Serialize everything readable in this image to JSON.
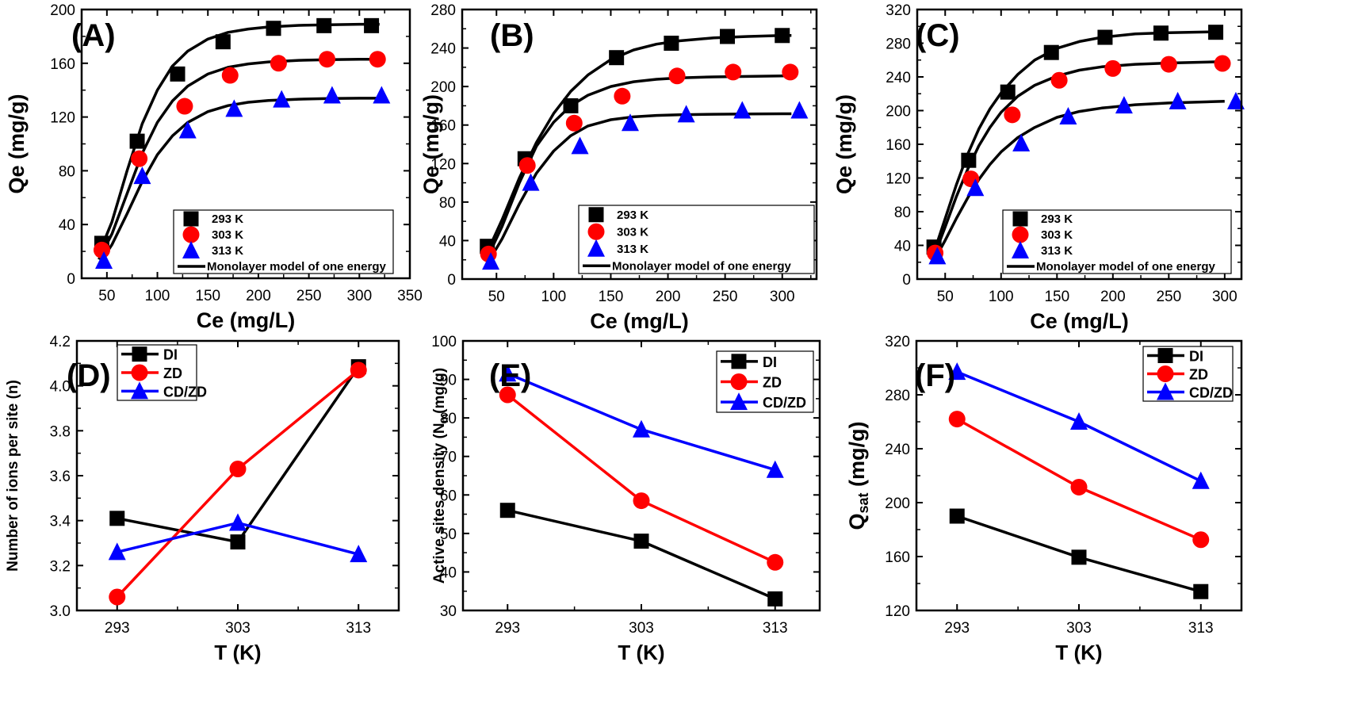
{
  "chart_data": [
    {
      "type": "scatter",
      "panel_label": "(A)",
      "xlabel": "Ce (mg/L)",
      "ylabel": "Qe (mg/g)",
      "xlim": [
        25,
        350
      ],
      "ylim": [
        0,
        200
      ],
      "xticks": [
        50,
        100,
        150,
        200,
        250,
        300,
        350
      ],
      "yticks": [
        0,
        40,
        80,
        120,
        160,
        200
      ],
      "legend_position": "bottom-right",
      "series": [
        {
          "name": "293 K",
          "marker": "square",
          "color": "#000000",
          "x": [
            45,
            80,
            120,
            165,
            215,
            265,
            312
          ],
          "y": [
            26,
            102,
            152,
            176,
            186,
            188,
            188
          ]
        },
        {
          "name": "303 K",
          "marker": "circle",
          "color": "#ff0000",
          "x": [
            45,
            82,
            127,
            172,
            220,
            268,
            318
          ],
          "y": [
            21,
            89,
            128,
            151,
            160,
            163,
            163
          ]
        },
        {
          "name": "313 K",
          "marker": "triangle",
          "color": "#0000ff",
          "x": [
            47,
            85,
            130,
            176,
            223,
            273,
            322
          ],
          "y": [
            13,
            76,
            110,
            126,
            133,
            136,
            136
          ]
        }
      ],
      "fits": [
        {
          "name": "Monolayer model of one energy",
          "color": "#000000",
          "x": [
            42,
            55,
            70,
            85,
            100,
            115,
            130,
            150,
            170,
            190,
            210,
            240,
            270,
            300,
            320
          ],
          "y": [
            18,
            42,
            80,
            115,
            140,
            158,
            169,
            178,
            183,
            185.5,
            187,
            188.2,
            188.7,
            189,
            189
          ]
        },
        {
          "name": "",
          "color": "#000000",
          "x": [
            42,
            55,
            70,
            85,
            100,
            115,
            130,
            150,
            170,
            190,
            210,
            240,
            270,
            300,
            320
          ],
          "y": [
            14,
            33,
            63,
            93,
            116,
            132,
            143,
            152,
            157,
            159.5,
            161,
            162.2,
            162.7,
            163,
            163
          ]
        },
        {
          "name": "",
          "color": "#000000",
          "x": [
            42,
            55,
            70,
            85,
            100,
            115,
            130,
            150,
            170,
            190,
            210,
            240,
            270,
            300,
            320
          ],
          "y": [
            10,
            25,
            48,
            72,
            92,
            106,
            116,
            124,
            128.5,
            131,
            132.3,
            133.3,
            133.8,
            134,
            134
          ]
        }
      ],
      "legend": [
        "293 K",
        "303 K",
        "313 K",
        "Monolayer model of one energy"
      ]
    },
    {
      "type": "scatter",
      "panel_label": "(B)",
      "xlabel": "Ce (mg/L)",
      "ylabel": "Qe (mg/g)",
      "xlim": [
        20,
        330
      ],
      "ylim": [
        0,
        280
      ],
      "xticks": [
        50,
        100,
        150,
        200,
        250,
        300
      ],
      "yticks": [
        0,
        40,
        80,
        120,
        160,
        200,
        240,
        280
      ],
      "legend_position": "bottom-right",
      "series": [
        {
          "name": "293 K",
          "marker": "square",
          "color": "#000000",
          "x": [
            42,
            75,
            115,
            155,
            203,
            252,
            300
          ],
          "y": [
            34,
            125,
            180,
            230,
            245,
            252,
            253
          ]
        },
        {
          "name": "303 K",
          "marker": "circle",
          "color": "#ff0000",
          "x": [
            43,
            77,
            118,
            160,
            208,
            257,
            307
          ],
          "y": [
            26,
            118,
            162,
            190,
            211,
            215,
            215
          ]
        },
        {
          "name": "313 K",
          "marker": "triangle",
          "color": "#0000ff",
          "x": [
            45,
            80,
            123,
            167,
            216,
            265,
            315
          ],
          "y": [
            18,
            100,
            138,
            162,
            171,
            175,
            175
          ]
        }
      ],
      "fits": [
        {
          "name": "Monolayer model of one energy",
          "color": "#000000",
          "x": [
            42,
            55,
            70,
            85,
            100,
            115,
            130,
            150,
            170,
            190,
            210,
            240,
            270,
            300,
            308
          ],
          "y": [
            28,
            62,
            105,
            142,
            172,
            195,
            212,
            228,
            238,
            244,
            247.5,
            250.5,
            252,
            253,
            253
          ]
        },
        {
          "name": "",
          "color": "#000000",
          "x": [
            42,
            55,
            70,
            85,
            100,
            115,
            130,
            150,
            170,
            190,
            210,
            240,
            270,
            300,
            308
          ],
          "y": [
            22,
            55,
            100,
            138,
            163,
            180,
            191,
            200,
            205,
            207.5,
            209,
            210,
            210.5,
            211,
            211
          ]
        },
        {
          "name": "",
          "color": "#000000",
          "x": [
            42,
            55,
            70,
            85,
            100,
            115,
            130,
            150,
            170,
            190,
            210,
            240,
            270,
            300,
            308
          ],
          "y": [
            16,
            42,
            78,
            110,
            133,
            149,
            159,
            165.5,
            168.5,
            170,
            170.7,
            171.2,
            171.5,
            171.7,
            171.7
          ]
        }
      ],
      "legend": [
        "293 K",
        "303 K",
        "313 K",
        "Monolayer model of one energy"
      ]
    },
    {
      "type": "scatter",
      "panel_label": "(C)",
      "xlabel": "Ce (mg/L)",
      "ylabel": "Qe (mg/g)",
      "xlim": [
        25,
        315
      ],
      "ylim": [
        0,
        320
      ],
      "xticks": [
        50,
        100,
        150,
        200,
        250,
        300
      ],
      "yticks": [
        0,
        40,
        80,
        120,
        160,
        200,
        240,
        280,
        320
      ],
      "legend_position": "bottom-right",
      "series": [
        {
          "name": "293 K",
          "marker": "square",
          "color": "#000000",
          "x": [
            40,
            71,
            106,
            145,
            193,
            243,
            292
          ],
          "y": [
            38,
            141,
            222,
            269,
            287,
            292,
            293
          ]
        },
        {
          "name": "303 K",
          "marker": "circle",
          "color": "#ff0000",
          "x": [
            41,
            73,
            110,
            152,
            200,
            250,
            298
          ],
          "y": [
            31,
            119,
            195,
            236,
            250,
            255,
            256
          ]
        },
        {
          "name": "313 K",
          "marker": "triangle",
          "color": "#0000ff",
          "x": [
            43,
            77,
            118,
            160,
            210,
            258,
            310
          ],
          "y": [
            27,
            108,
            161,
            193,
            206,
            211,
            211
          ]
        }
      ],
      "fits": [
        {
          "name": "Monolayer model of one energy",
          "color": "#000000",
          "x": [
            40,
            50,
            60,
            70,
            80,
            90,
            100,
            115,
            130,
            150,
            170,
            190,
            220,
            250,
            290
          ],
          "y": [
            32,
            72,
            112,
            148,
            178,
            202,
            221,
            243,
            260,
            274,
            282,
            287,
            291,
            292.5,
            293.5
          ]
        },
        {
          "name": "",
          "color": "#000000",
          "x": [
            40,
            50,
            60,
            70,
            80,
            90,
            100,
            115,
            130,
            150,
            170,
            190,
            220,
            250,
            295
          ],
          "y": [
            27,
            62,
            98,
            130,
            158,
            180,
            198,
            217,
            230,
            241,
            248,
            252,
            255,
            256.5,
            258
          ]
        },
        {
          "name": "",
          "color": "#000000",
          "x": [
            40,
            50,
            60,
            70,
            80,
            90,
            100,
            115,
            130,
            150,
            170,
            190,
            220,
            250,
            300
          ],
          "y": [
            22,
            46,
            72,
            96,
            118,
            136,
            151,
            168,
            180,
            192,
            199,
            203,
            207,
            209,
            211
          ]
        }
      ],
      "legend": [
        "293 K",
        "303 K",
        "313 K",
        "Monolayer model of one energy"
      ]
    },
    {
      "type": "line",
      "panel_label": "(D)",
      "xlabel": "T (K)",
      "ylabel": "Number of ions per site (n)",
      "categories": [
        "293",
        "303",
        "313"
      ],
      "ylim": [
        3.0,
        4.2
      ],
      "yticks": [
        "3.0",
        "3.2",
        "3.4",
        "3.6",
        "3.8",
        "4.0",
        "4.2"
      ],
      "legend_position": "top-left",
      "series": [
        {
          "name": "DI",
          "marker": "square",
          "color": "#000000",
          "values": [
            3.41,
            3.305,
            4.085
          ]
        },
        {
          "name": "ZD",
          "marker": "circle",
          "color": "#ff0000",
          "values": [
            3.06,
            3.63,
            4.07
          ]
        },
        {
          "name": "CD/ZD",
          "marker": "triangle",
          "color": "#0000ff",
          "values": [
            3.26,
            3.39,
            3.25
          ]
        }
      ]
    },
    {
      "type": "line",
      "panel_label": "(E)",
      "xlabel": "T (K)",
      "ylabel": "Active sites density (N",
      "ylabel_subscript": "m",
      "ylabel_suffix": "(mg/g)",
      "categories": [
        "293",
        "303",
        "313"
      ],
      "ylim": [
        30,
        100
      ],
      "yticks": [
        "30",
        "40",
        "50",
        "60",
        "70",
        "80",
        "90",
        "100"
      ],
      "legend_position": "top-right",
      "series": [
        {
          "name": "DI",
          "marker": "square",
          "color": "#000000",
          "values": [
            56,
            48,
            33
          ]
        },
        {
          "name": "ZD",
          "marker": "circle",
          "color": "#ff0000",
          "values": [
            86,
            58.5,
            42.5
          ]
        },
        {
          "name": "CD/ZD",
          "marker": "triangle",
          "color": "#0000ff",
          "values": [
            91.5,
            77,
            66.5
          ]
        }
      ]
    },
    {
      "type": "line",
      "panel_label": "(F)",
      "xlabel": "T (K)",
      "ylabel": "Q",
      "ylabel_subscript": "sat",
      "ylabel_suffix": " (mg/g)",
      "categories": [
        "293",
        "303",
        "313"
      ],
      "ylim": [
        120,
        320
      ],
      "yticks": [
        "120",
        "160",
        "200",
        "240",
        "280",
        "320"
      ],
      "legend_position": "top-right",
      "series": [
        {
          "name": "DI",
          "marker": "square",
          "color": "#000000",
          "values": [
            190,
            159.5,
            134
          ]
        },
        {
          "name": "ZD",
          "marker": "circle",
          "color": "#ff0000",
          "values": [
            262,
            211.5,
            172.5
          ]
        },
        {
          "name": "CD/ZD",
          "marker": "triangle",
          "color": "#0000ff",
          "values": [
            297,
            260,
            216
          ]
        }
      ]
    }
  ]
}
